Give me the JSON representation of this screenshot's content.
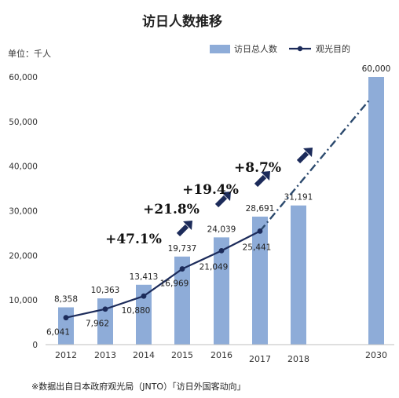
{
  "chart_data": {
    "type": "bar",
    "title": "访日人数推移",
    "unit_label": "单位：千人",
    "categories": [
      "2012",
      "2013",
      "2014",
      "2015",
      "2016",
      "2017",
      "2018",
      "2030"
    ],
    "ylim": [
      0,
      60000
    ],
    "yticks": [
      "0",
      "10,000",
      "20,000",
      "30,000",
      "40,000",
      "50,000",
      "60,000"
    ],
    "grid": false,
    "legend_position": "top-right",
    "series": [
      {
        "name": "访日总人数",
        "type": "bar",
        "color": "#8eacd8",
        "values": [
          8358,
          10363,
          13413,
          19737,
          24039,
          28691,
          31191,
          60000
        ],
        "labels": [
          "8,358",
          "10,363",
          "13,413",
          "19,737",
          "24,039",
          "28,691",
          "31,191",
          "60,000"
        ]
      },
      {
        "name": "观光目的",
        "type": "line",
        "color": "#1c2b5a",
        "values": [
          6041,
          7962,
          10880,
          16969,
          21049,
          25441,
          null,
          55000
        ],
        "labels": [
          "6,041",
          "7,962",
          "10,880",
          "16,969",
          "21,049",
          "25,441",
          "",
          ""
        ],
        "projection_from_index": 5
      }
    ],
    "annotations": [
      "+47.1%",
      "+21.8%",
      "+19.4%",
      "+8.7%"
    ],
    "source_note": "※数据出自日本政府观光局（JNTO）「访日外国客动向」"
  }
}
